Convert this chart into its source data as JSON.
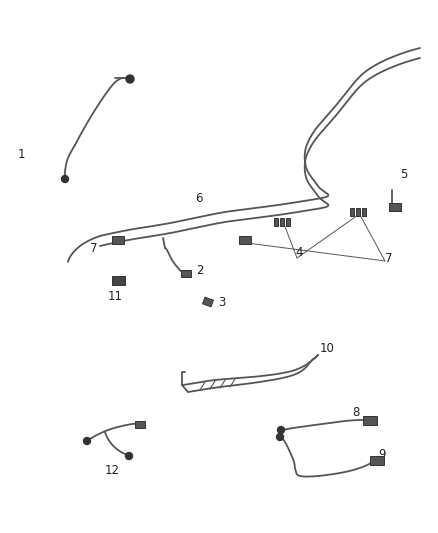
{
  "bg_color": "#ffffff",
  "line_color": "#555555",
  "dark_color": "#333333",
  "label_color": "#222222",
  "fig_width": 4.38,
  "fig_height": 5.33,
  "dpi": 100
}
